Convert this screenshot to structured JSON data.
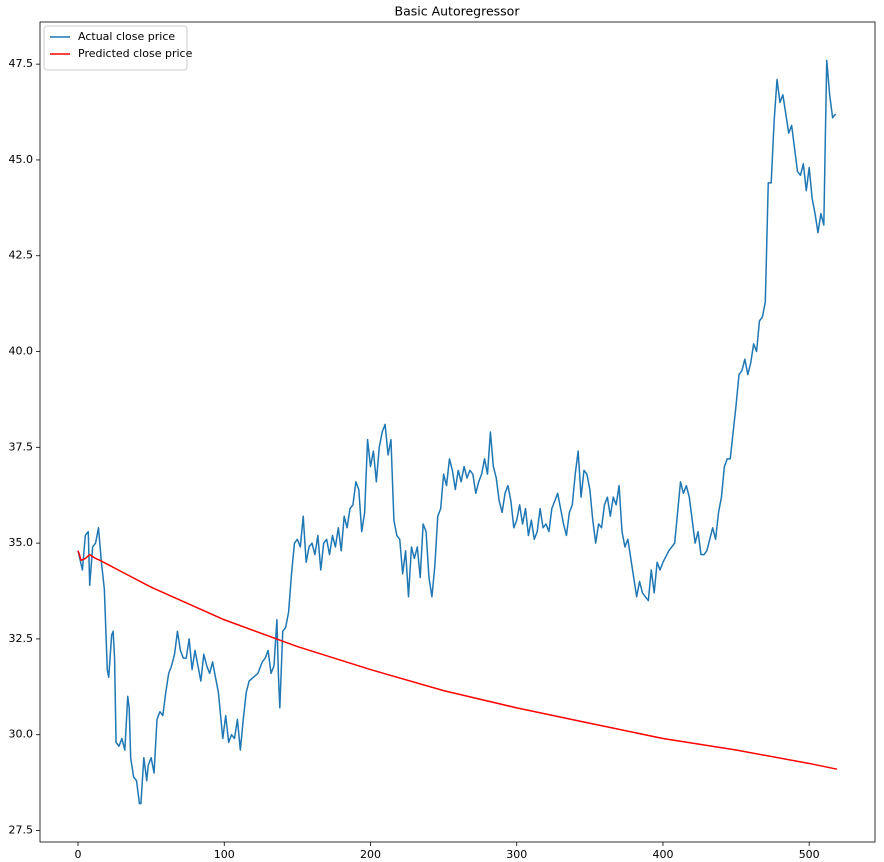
{
  "chart_data": {
    "type": "line",
    "title": "Basic Autoregressor",
    "xlim": [
      -26,
      545
    ],
    "ylim": [
      27.2,
      48.6
    ],
    "xticks": [
      0,
      100,
      200,
      300,
      400,
      500
    ],
    "yticks": [
      27.5,
      {
        "value": 30,
        "label": "30.0"
      },
      32.5,
      {
        "value": 35,
        "label": "35.0"
      },
      37.5,
      {
        "value": 40,
        "label": "40.0"
      },
      42.5,
      {
        "value": 45,
        "label": "45.0"
      },
      47.5
    ],
    "legend": "upper left",
    "series": [
      {
        "name": "Actual close price",
        "color": "#1f77b4",
        "x": [
          0,
          3,
          5,
          7,
          8,
          10,
          12,
          14,
          16,
          18,
          20,
          21,
          23,
          24,
          25,
          26,
          28,
          30,
          32,
          34,
          35,
          36,
          38,
          40,
          42,
          43,
          45,
          47,
          48,
          50,
          52,
          54,
          56,
          58,
          60,
          62,
          64,
          66,
          68,
          70,
          72,
          74,
          76,
          78,
          80,
          82,
          84,
          86,
          88,
          90,
          92,
          94,
          96,
          98,
          99,
          101,
          103,
          105,
          107,
          109,
          111,
          113,
          115,
          117,
          120,
          123,
          126,
          128,
          130,
          132,
          134,
          136,
          137,
          138,
          140,
          142,
          144,
          146,
          148,
          150,
          152,
          154,
          156,
          158,
          160,
          162,
          164,
          166,
          168,
          170,
          172,
          174,
          176,
          178,
          180,
          182,
          184,
          186,
          188,
          190,
          192,
          194,
          196,
          198,
          200,
          202,
          204,
          206,
          208,
          210,
          212,
          214,
          216,
          218,
          220,
          222,
          224,
          226,
          228,
          230,
          232,
          234,
          236,
          238,
          240,
          242,
          244,
          246,
          248,
          250,
          252,
          254,
          256,
          258,
          260,
          262,
          264,
          266,
          268,
          270,
          272,
          274,
          276,
          278,
          280,
          282,
          284,
          286,
          288,
          290,
          292,
          294,
          296,
          298,
          300,
          302,
          304,
          306,
          308,
          310,
          312,
          314,
          316,
          318,
          320,
          322,
          324,
          326,
          328,
          330,
          332,
          334,
          336,
          338,
          340,
          342,
          344,
          346,
          348,
          350,
          352,
          354,
          356,
          358,
          360,
          362,
          364,
          366,
          368,
          370,
          372,
          374,
          376,
          378,
          380,
          382,
          384,
          386,
          388,
          390,
          392,
          394,
          396,
          398,
          400,
          404,
          408,
          412,
          414,
          416,
          418,
          420,
          422,
          424,
          426,
          428,
          430,
          432,
          434,
          436,
          438,
          440,
          442,
          444,
          446,
          448,
          450,
          452,
          454,
          456,
          458,
          460,
          462,
          464,
          466,
          468,
          470,
          472,
          474,
          476,
          478,
          480,
          482,
          484,
          486,
          488,
          490,
          492,
          494,
          496,
          498,
          500,
          502,
          504,
          506,
          508,
          510,
          511,
          512,
          514,
          516,
          518
        ],
        "values": [
          34.8,
          34.3,
          35.2,
          35.3,
          33.9,
          34.9,
          35.0,
          35.4,
          34.5,
          33.8,
          31.7,
          31.5,
          32.6,
          32.7,
          32.0,
          29.8,
          29.7,
          29.9,
          29.6,
          31.0,
          30.7,
          29.4,
          28.9,
          28.8,
          28.2,
          28.2,
          29.4,
          28.8,
          29.2,
          29.4,
          29.0,
          30.4,
          30.6,
          30.5,
          31.1,
          31.6,
          31.8,
          32.1,
          32.7,
          32.2,
          32.0,
          32.0,
          32.5,
          31.7,
          32.2,
          31.8,
          31.4,
          32.1,
          31.8,
          31.6,
          31.9,
          31.5,
          31.1,
          30.3,
          29.9,
          30.5,
          29.8,
          30.0,
          29.9,
          30.4,
          29.6,
          30.4,
          31.1,
          31.4,
          31.5,
          31.6,
          31.9,
          32.0,
          32.2,
          31.6,
          31.8,
          33.0,
          31.6,
          30.7,
          32.7,
          32.8,
          33.2,
          34.2,
          35.0,
          35.1,
          34.9,
          35.7,
          34.5,
          34.9,
          35.0,
          34.7,
          35.2,
          34.3,
          35.0,
          35.1,
          34.7,
          35.2,
          34.9,
          35.4,
          34.8,
          35.7,
          35.4,
          35.9,
          36.0,
          36.6,
          36.4,
          35.3,
          35.8,
          37.7,
          37.0,
          37.4,
          36.6,
          37.5,
          37.9,
          38.1,
          37.3,
          37.7,
          35.6,
          35.2,
          35.1,
          34.2,
          34.8,
          33.6,
          34.9,
          34.6,
          34.9,
          34.1,
          35.5,
          35.3,
          34.1,
          33.6,
          34.4,
          35.7,
          35.9,
          36.8,
          36.5,
          37.2,
          36.9,
          36.4,
          36.9,
          36.6,
          37.0,
          36.7,
          36.9,
          36.8,
          36.3,
          36.6,
          36.8,
          37.2,
          36.8,
          37.9,
          37.0,
          36.7,
          36.1,
          35.8,
          36.3,
          36.5,
          36.1,
          35.4,
          35.6,
          36.0,
          35.5,
          35.9,
          35.2,
          35.6,
          35.1,
          35.3,
          35.9,
          35.4,
          35.5,
          35.3,
          35.9,
          36.1,
          36.3,
          35.9,
          35.5,
          35.2,
          35.8,
          36.0,
          36.8,
          37.4,
          36.2,
          36.9,
          36.8,
          36.4,
          35.6,
          35.0,
          35.5,
          35.4,
          36.0,
          36.2,
          35.7,
          36.2,
          36.0,
          36.5,
          35.3,
          34.9,
          35.1,
          34.6,
          34.1,
          33.6,
          34.0,
          33.7,
          33.6,
          33.5,
          34.3,
          33.7,
          34.5,
          34.3,
          34.5,
          34.8,
          35.0,
          36.6,
          36.3,
          36.5,
          36.2,
          35.6,
          35.0,
          35.3,
          34.7,
          34.7,
          34.8,
          35.1,
          35.4,
          35.1,
          35.8,
          36.2,
          37.0,
          37.2,
          37.2,
          37.9,
          38.6,
          39.4,
          39.5,
          39.8,
          39.4,
          39.7,
          40.2,
          40.0,
          40.8,
          40.9,
          41.3,
          44.4,
          44.4,
          46.0,
          47.1,
          46.5,
          46.7,
          46.2,
          45.7,
          45.9,
          45.3,
          44.7,
          44.6,
          44.9,
          44.2,
          44.8,
          44.0,
          43.6,
          43.1,
          43.6,
          43.3,
          45.5,
          47.6,
          46.7,
          46.1,
          46.2
        ]
      },
      {
        "name": "Predicted close price",
        "color": "#ff0000",
        "x": [
          0,
          1,
          2,
          5,
          8,
          12,
          15,
          20,
          30,
          50,
          100,
          150,
          200,
          250,
          300,
          350,
          400,
          450,
          500,
          519
        ],
        "values": [
          34.8,
          34.7,
          34.55,
          34.6,
          34.7,
          34.6,
          34.55,
          34.45,
          34.25,
          33.85,
          33.0,
          32.3,
          31.7,
          31.15,
          30.7,
          30.3,
          29.9,
          29.6,
          29.25,
          29.1
        ]
      }
    ]
  }
}
